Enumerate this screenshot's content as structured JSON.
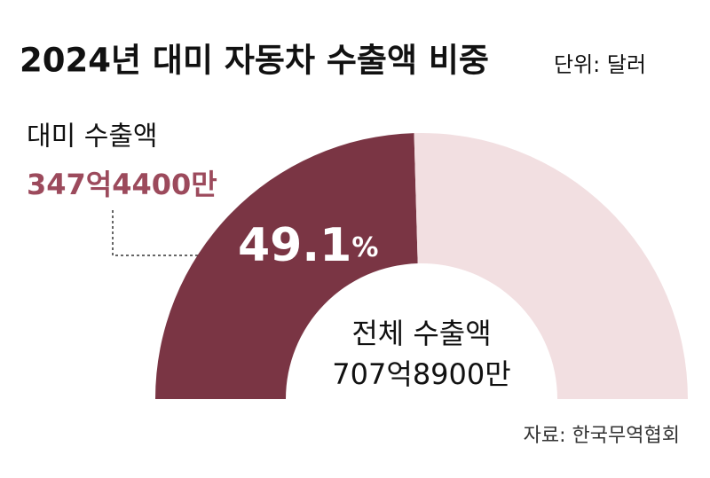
{
  "chart_data": {
    "type": "half-donut",
    "title": "2024년 대미 자동차 수출액 비중",
    "unit_note": "단위: 달러",
    "categories": [
      "대미 수출액",
      null
    ],
    "values": [
      49.1,
      50.9
    ],
    "value_labels": [
      "49.1%",
      null
    ],
    "amount_labels": [
      "347억4400만",
      null
    ],
    "colors": [
      "#7a3544",
      "#f2dfe1"
    ],
    "center_label": "전체 수출액",
    "center_value": "707억8900만",
    "source": "자료: 한국무역협회"
  }
}
